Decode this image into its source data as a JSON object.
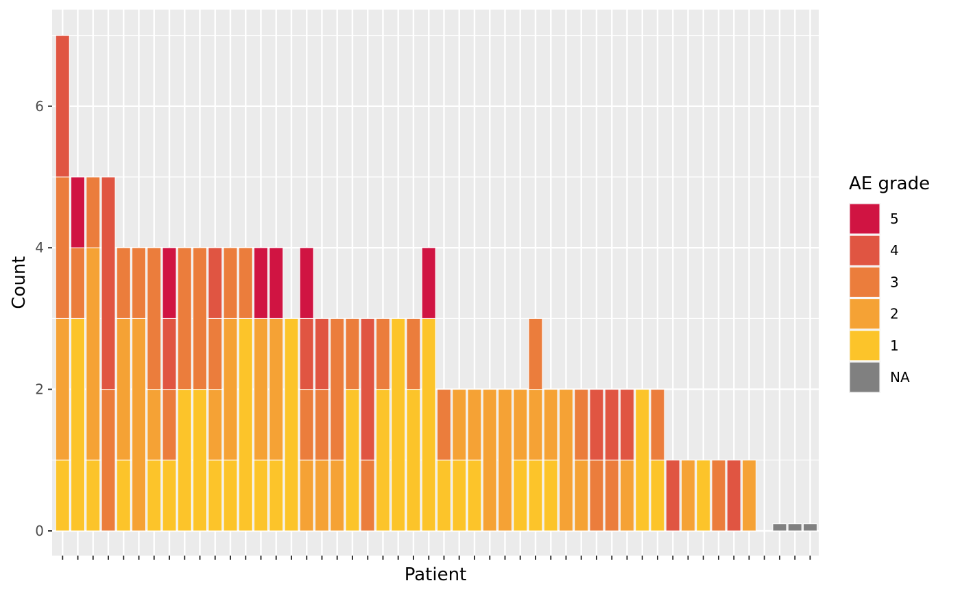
{
  "chart_data": {
    "type": "bar",
    "stacked": true,
    "title": "",
    "xlabel": "Patient",
    "ylabel": "Count",
    "ylim": [
      0,
      7.2
    ],
    "yticks": [
      0,
      2,
      4,
      6
    ],
    "grid": true,
    "legend": {
      "title": "AE grade",
      "position": "right",
      "entries": [
        {
          "label": "5",
          "color": "#d01442"
        },
        {
          "label": "4",
          "color": "#e05542"
        },
        {
          "label": "3",
          "color": "#eb7d3c"
        },
        {
          "label": "2",
          "color": "#f5a235"
        },
        {
          "label": "1",
          "color": "#fcc42a"
        },
        {
          "label": "NA",
          "color": "#808080"
        }
      ]
    },
    "series": [
      {
        "name": "1",
        "values": [
          1,
          3,
          1,
          0,
          1,
          0,
          1,
          1,
          2,
          2,
          1,
          1,
          3,
          1,
          1,
          3,
          0,
          0,
          0,
          2,
          0,
          2,
          3,
          2,
          3,
          1,
          1,
          1,
          0,
          0,
          1,
          1,
          1,
          0,
          0,
          0,
          0,
          0,
          2,
          1,
          0,
          0,
          1,
          0,
          0,
          0,
          0,
          0,
          0,
          0
        ]
      },
      {
        "name": "2",
        "values": [
          2,
          0,
          3,
          0,
          2,
          3,
          1,
          0,
          0,
          0,
          1,
          2,
          0,
          2,
          2,
          0,
          1,
          1,
          1,
          0,
          0,
          0,
          0,
          0,
          0,
          0,
          1,
          1,
          2,
          2,
          1,
          1,
          1,
          2,
          1,
          0,
          0,
          1,
          0,
          0,
          0,
          1,
          0,
          0,
          0,
          1,
          0,
          0,
          0,
          0
        ]
      },
      {
        "name": "3",
        "values": [
          2,
          1,
          1,
          2,
          1,
          1,
          2,
          1,
          2,
          2,
          1,
          1,
          1,
          0,
          0,
          0,
          1,
          1,
          2,
          1,
          1,
          1,
          0,
          1,
          0,
          1,
          0,
          0,
          0,
          0,
          0,
          1,
          0,
          0,
          1,
          1,
          1,
          0,
          0,
          1,
          0,
          0,
          0,
          1,
          0,
          0,
          0,
          0,
          0,
          0
        ]
      },
      {
        "name": "4",
        "values": [
          2,
          0,
          0,
          3,
          0,
          0,
          0,
          1,
          0,
          0,
          1,
          0,
          0,
          0,
          0,
          0,
          1,
          1,
          0,
          0,
          2,
          0,
          0,
          0,
          0,
          0,
          0,
          0,
          0,
          0,
          0,
          0,
          0,
          0,
          0,
          1,
          1,
          1,
          0,
          0,
          1,
          0,
          0,
          0,
          1,
          0,
          0,
          0,
          0,
          0
        ]
      },
      {
        "name": "5",
        "values": [
          0,
          1,
          0,
          0,
          0,
          0,
          0,
          1,
          0,
          0,
          0,
          0,
          0,
          1,
          1,
          0,
          1,
          0,
          0,
          0,
          0,
          0,
          0,
          0,
          1,
          0,
          0,
          0,
          0,
          0,
          0,
          0,
          0,
          0,
          0,
          0,
          0,
          0,
          0,
          0,
          0,
          0,
          0,
          0,
          0,
          0,
          0,
          0,
          0,
          0
        ]
      },
      {
        "name": "NA",
        "values": [
          0,
          0,
          0,
          0,
          0,
          0,
          0,
          0,
          0,
          0,
          0,
          0,
          0,
          0,
          0,
          0,
          0,
          0,
          0,
          0,
          0,
          0,
          0,
          0,
          0,
          0,
          0,
          0,
          0,
          0,
          0,
          0,
          0,
          0,
          0,
          0,
          0,
          0,
          0,
          0,
          0,
          0,
          0,
          0,
          0,
          0,
          0,
          0.1,
          0.1,
          0.1
        ]
      }
    ]
  }
}
